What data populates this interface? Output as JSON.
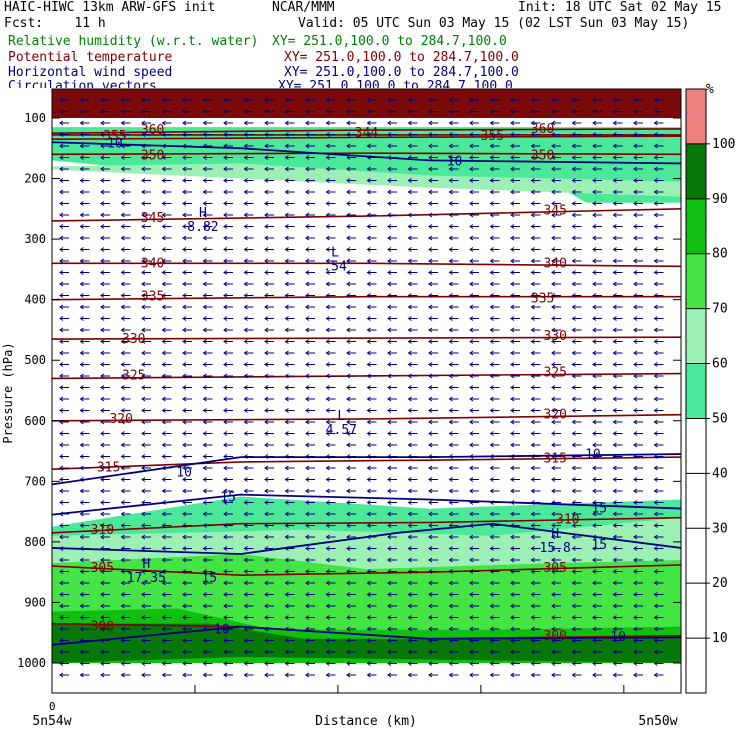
{
  "header": {
    "line1_left": "HAIC-HIWC 13km ARW-GFS init",
    "line1_mid": "NCAR/MMM",
    "line1_right": "Init: 18 UTC Sat 02 May 15",
    "fcst": "Fcst:    11 h",
    "valid": "Valid: 05 UTC Sun 03 May 15 (02 LST Sun 03 May 15)"
  },
  "fields": [
    {
      "name": "Relative humidity (w.r.t. water)",
      "xy": "XY= 251.0,100.0 to 284.7,100.0",
      "color": "#008000"
    },
    {
      "name": "Potential temperature",
      "xy": "XY= 251.0,100.0 to 284.7,100.0",
      "color": "#800000"
    },
    {
      "name": "Horizontal wind speed",
      "xy": "XY= 251.0,100.0 to 284.7,100.0",
      "color": "#000080"
    },
    {
      "name": "Circulation vectors",
      "xy": "XY= 251.0,100.0 to 284.7,100.0",
      "color": "#000080"
    }
  ],
  "chart_data": {
    "type": "cross-section",
    "ylabel": "Pressure (hPa)",
    "xlabel": "Distance (km)",
    "x_start_label": "0",
    "x_left_label": "5n54w",
    "x_right_label": "5n50w",
    "y_ticks": [
      100,
      200,
      300,
      400,
      500,
      600,
      700,
      800,
      900,
      1000
    ],
    "ylim": [
      1000,
      60
    ],
    "colorbar": {
      "unit": "%",
      "ticks": [
        10,
        20,
        30,
        40,
        50,
        60,
        70,
        80,
        90,
        100
      ],
      "bins": [
        {
          "from": 0,
          "to": 50,
          "color": "#ffffff"
        },
        {
          "from": 50,
          "to": 60,
          "color": "#4ce89a"
        },
        {
          "from": 60,
          "to": 70,
          "color": "#9cf0b4"
        },
        {
          "from": 70,
          "to": 80,
          "color": "#44e444"
        },
        {
          "from": 80,
          "to": 90,
          "color": "#10c010"
        },
        {
          "from": 90,
          "to": 100,
          "color": "#087808"
        },
        {
          "from": 100,
          "to": 110,
          "color": "#f08080"
        }
      ]
    },
    "rh_regions": [
      {
        "rh": 55,
        "top": [
          [
            0,
            115
          ],
          [
            0.7,
            115
          ],
          [
            1,
            115
          ]
        ],
        "bottom": [
          [
            0,
            170
          ],
          [
            0.2,
            190
          ],
          [
            0.5,
            195
          ],
          [
            0.8,
            210
          ],
          [
            0.85,
            240
          ],
          [
            1,
            240
          ]
        ]
      },
      {
        "rh": 65,
        "top": [
          [
            0,
            180
          ],
          [
            0.3,
            175
          ],
          [
            0.6,
            195
          ],
          [
            1,
            205
          ]
        ],
        "bottom": [
          [
            0,
            185
          ],
          [
            0.3,
            200
          ],
          [
            0.6,
            215
          ],
          [
            1,
            230
          ]
        ]
      },
      {
        "rh": 55,
        "top": [
          [
            0,
            775
          ],
          [
            0.3,
            725
          ],
          [
            0.6,
            745
          ],
          [
            1,
            730
          ]
        ],
        "bottom": [
          [
            0,
            1000
          ],
          [
            1,
            1000
          ]
        ]
      },
      {
        "rh": 65,
        "top": [
          [
            0,
            790
          ],
          [
            0.4,
            780
          ],
          [
            0.7,
            790
          ],
          [
            1,
            760
          ]
        ],
        "bottom": [
          [
            0,
            1000
          ],
          [
            1,
            1000
          ]
        ]
      },
      {
        "rh": 75,
        "top": [
          [
            0,
            835
          ],
          [
            0.3,
            820
          ],
          [
            0.5,
            845
          ],
          [
            0.8,
            835
          ],
          [
            1,
            830
          ]
        ],
        "bottom": [
          [
            0,
            1000
          ],
          [
            1,
            1000
          ]
        ]
      },
      {
        "rh": 85,
        "top": [
          [
            0,
            915
          ],
          [
            0.2,
            910
          ],
          [
            0.35,
            945
          ],
          [
            0.7,
            945
          ],
          [
            1,
            940
          ]
        ],
        "bottom": [
          [
            0,
            1000
          ],
          [
            1,
            1000
          ]
        ]
      },
      {
        "rh": 95,
        "top": [
          [
            0,
            935
          ],
          [
            0.25,
            935
          ],
          [
            0.4,
            960
          ],
          [
            1,
            960
          ]
        ],
        "bottom": [
          [
            0,
            1000
          ],
          [
            0.3,
            990
          ],
          [
            1,
            1000
          ]
        ]
      },
      {
        "rh": 105,
        "top": [
          [
            0,
            60
          ],
          [
            1,
            60
          ]
        ],
        "bottom": [
          [
            0,
            100
          ],
          [
            1,
            100
          ]
        ]
      }
    ],
    "theta_contours": [
      {
        "label": "360",
        "points": [
          [
            0,
            125
          ],
          [
            0.5,
            120
          ],
          [
            1,
            118
          ]
        ],
        "labels_at": [
          [
            0.16,
            120
          ],
          [
            0.78,
            118
          ]
        ]
      },
      {
        "label": "355",
        "points": [
          [
            0,
            135
          ],
          [
            0.5,
            132
          ],
          [
            1,
            130
          ]
        ],
        "labels_at": [
          [
            0.1,
            130
          ],
          [
            0.7,
            130
          ]
        ]
      },
      {
        "label": "344",
        "points": [
          [
            0,
            128
          ],
          [
            1,
            128
          ]
        ],
        "labels_at": [
          [
            0.5,
            125
          ]
        ]
      },
      {
        "label": "350",
        "points": [
          [
            0,
            160
          ],
          [
            0.5,
            158
          ],
          [
            1,
            160
          ]
        ],
        "labels_at": [
          [
            0.16,
            162
          ],
          [
            0.78,
            162
          ]
        ]
      },
      {
        "label": "345",
        "points": [
          [
            0,
            270
          ],
          [
            0.5,
            262
          ],
          [
            1,
            250
          ]
        ],
        "labels_at": [
          [
            0.16,
            265
          ],
          [
            0.8,
            253
          ]
        ]
      },
      {
        "label": "340",
        "points": [
          [
            0,
            340
          ],
          [
            0.5,
            340
          ],
          [
            1,
            345
          ]
        ],
        "labels_at": [
          [
            0.16,
            340
          ],
          [
            0.8,
            340
          ]
        ]
      },
      {
        "label": "335",
        "points": [
          [
            0,
            400
          ],
          [
            0.5,
            395
          ],
          [
            1,
            395
          ]
        ],
        "labels_at": [
          [
            0.16,
            395
          ],
          [
            0.78,
            398
          ]
        ]
      },
      {
        "label": "330",
        "points": [
          [
            0,
            465
          ],
          [
            1,
            462
          ]
        ],
        "labels_at": [
          [
            0.13,
            465
          ],
          [
            0.8,
            460
          ]
        ]
      },
      {
        "label": "325",
        "points": [
          [
            0,
            530
          ],
          [
            1,
            522
          ]
        ],
        "labels_at": [
          [
            0.13,
            525
          ],
          [
            0.8,
            520
          ]
        ]
      },
      {
        "label": "320",
        "points": [
          [
            0,
            600
          ],
          [
            0.5,
            597
          ],
          [
            1,
            590
          ]
        ],
        "labels_at": [
          [
            0.11,
            597
          ],
          [
            0.8,
            590
          ]
        ]
      },
      {
        "label": "315",
        "points": [
          [
            0,
            680
          ],
          [
            0.3,
            668
          ],
          [
            0.6,
            665
          ],
          [
            1,
            660
          ]
        ],
        "labels_at": [
          [
            0.09,
            677
          ],
          [
            0.8,
            662
          ]
        ]
      },
      {
        "label": "310",
        "points": [
          [
            0,
            785
          ],
          [
            0.3,
            770
          ],
          [
            0.6,
            768
          ],
          [
            1,
            760
          ]
        ],
        "labels_at": [
          [
            0.08,
            780
          ],
          [
            0.82,
            763
          ]
        ]
      },
      {
        "label": "305",
        "points": [
          [
            0,
            840
          ],
          [
            0.3,
            855
          ],
          [
            0.6,
            850
          ],
          [
            1,
            838
          ]
        ],
        "labels_at": [
          [
            0.08,
            843
          ],
          [
            0.8,
            843
          ]
        ]
      },
      {
        "label": "300",
        "points": [
          [
            0,
            935
          ],
          [
            0.3,
            940
          ],
          [
            0.6,
            960
          ],
          [
            1,
            955
          ]
        ],
        "labels_at": [
          [
            0.08,
            940
          ],
          [
            0.8,
            955
          ]
        ]
      }
    ],
    "wind_contours": [
      {
        "label": "10",
        "points": [
          [
            0,
            140
          ],
          [
            0.3,
            150
          ],
          [
            0.6,
            170
          ],
          [
            1,
            175
          ]
        ],
        "labels_at": [
          [
            0.1,
            142
          ],
          [
            0.64,
            172
          ]
        ]
      },
      {
        "label": "10",
        "points": [
          [
            0,
            705
          ],
          [
            0.3,
            660
          ],
          [
            0.6,
            660
          ],
          [
            1,
            655
          ]
        ],
        "labels_at": [
          [
            0.21,
            685
          ],
          [
            0.86,
            656
          ]
        ]
      },
      {
        "label": "15",
        "points": [
          [
            0,
            755
          ],
          [
            0.3,
            722
          ],
          [
            0.6,
            730
          ],
          [
            1,
            745
          ]
        ],
        "labels_at": [
          [
            0.28,
            727
          ],
          [
            0.87,
            745
          ]
        ]
      },
      {
        "label": "15",
        "points": [
          [
            0,
            810
          ],
          [
            0.3,
            820
          ],
          [
            0.55,
            785
          ],
          [
            0.7,
            770
          ],
          [
            1,
            810
          ]
        ],
        "labels_at": [
          [
            0.25,
            860
          ],
          [
            0.87,
            805
          ]
        ]
      },
      {
        "label": "10",
        "points": [
          [
            0,
            970
          ],
          [
            0.3,
            940
          ],
          [
            0.6,
            960
          ],
          [
            1,
            958
          ]
        ],
        "labels_at": [
          [
            0.27,
            945
          ],
          [
            0.9,
            957
          ]
        ]
      }
    ],
    "extrema": [
      {
        "type": "H",
        "value": "8.82",
        "x": 0.24,
        "p": 270
      },
      {
        "type": "L",
        "value": ".54",
        "x": 0.45,
        "p": 335
      },
      {
        "type": "L",
        "value": "4.57",
        "x": 0.46,
        "p": 605
      },
      {
        "type": "H",
        "value": "17.35",
        "x": 0.15,
        "p": 850
      },
      {
        "type": "H",
        "value": "15.8",
        "x": 0.8,
        "p": 800
      }
    ]
  }
}
